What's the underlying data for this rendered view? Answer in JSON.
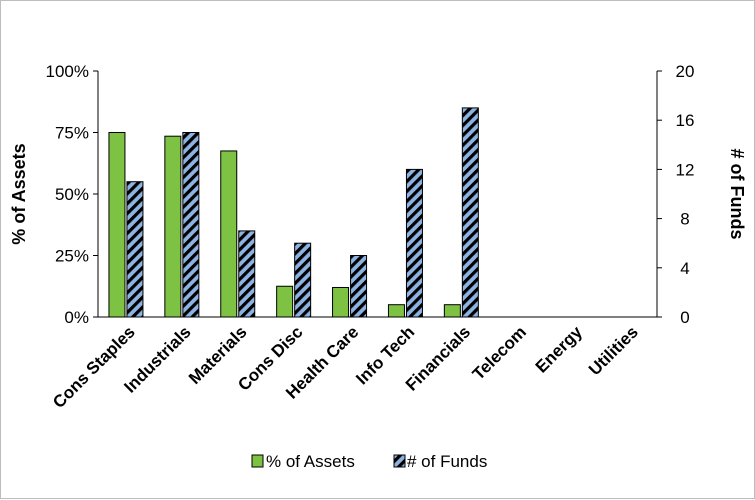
{
  "chart_data": {
    "type": "bar",
    "categories": [
      "Cons Staples",
      "Industrials",
      "Materials",
      "Cons Disc",
      "Health Care",
      "Info Tech",
      "Financials",
      "Telecom",
      "Energy",
      "Utilities"
    ],
    "series": [
      {
        "name": "% of Assets",
        "axis": "left",
        "color": "#7dc242",
        "values": [
          75,
          73.5,
          67.5,
          12.5,
          12,
          5,
          5,
          0,
          0,
          0
        ]
      },
      {
        "name": "# of Funds",
        "axis": "right",
        "color": "#8db3e2",
        "pattern": "black-diagonal-hatch",
        "values": [
          11,
          15,
          7,
          6,
          5,
          12,
          17,
          0,
          0,
          0
        ]
      }
    ],
    "ylabel_left": "% of Assets",
    "ylabel_right": "# of Funds",
    "ylim_left": [
      0,
      100
    ],
    "ylim_right": [
      0,
      20
    ],
    "yticks_left": [
      "0%",
      "25%",
      "50%",
      "75%",
      "100%"
    ],
    "yticks_right": [
      "0",
      "4",
      "8",
      "12",
      "16",
      "20"
    ],
    "legend_position": "bottom",
    "grid": false
  }
}
